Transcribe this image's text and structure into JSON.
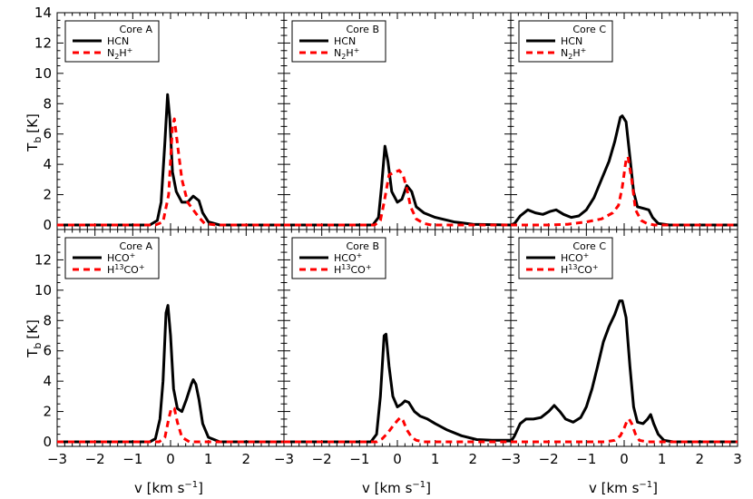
{
  "figure": {
    "ylabel_main": "T",
    "ylabel_sub": "b",
    "ylabel_unit": "[K]",
    "xlabel_main": "v [km s",
    "xlabel_sup": "−1",
    "xlabel_close": "]"
  },
  "colors": {
    "primary": "#000000",
    "secondary": "#ff0000"
  },
  "chart_data": [
    {
      "type": "line",
      "panel": "top-left",
      "legend": {
        "title": "Core A",
        "entries": [
          {
            "text": "HCN"
          },
          {
            "text": "N",
            "sub": "2",
            "text2": "H",
            "sup": "+"
          }
        ]
      },
      "xlim": [
        -3,
        3
      ],
      "ylim": [
        -0.3,
        14
      ],
      "yticks": [
        "0",
        "2",
        "4",
        "6",
        "8",
        "10",
        "12",
        "14"
      ],
      "xticks": [],
      "series": [
        {
          "style": "solid",
          "points": [
            [
              -3,
              0
            ],
            [
              -0.55,
              0
            ],
            [
              -0.35,
              0.3
            ],
            [
              -0.25,
              1.5
            ],
            [
              -0.15,
              5.5
            ],
            [
              -0.08,
              8.6
            ],
            [
              -0.02,
              7
            ],
            [
              0.05,
              3.5
            ],
            [
              0.15,
              2.2
            ],
            [
              0.3,
              1.5
            ],
            [
              0.45,
              1.5
            ],
            [
              0.6,
              1.9
            ],
            [
              0.75,
              1.6
            ],
            [
              0.85,
              0.8
            ],
            [
              1,
              0.2
            ],
            [
              1.3,
              0
            ],
            [
              3,
              0
            ]
          ]
        },
        {
          "style": "dashed",
          "points": [
            [
              -3,
              0
            ],
            [
              -0.4,
              0
            ],
            [
              -0.2,
              0.2
            ],
            [
              -0.05,
              2
            ],
            [
              0.05,
              6.5
            ],
            [
              0.1,
              7
            ],
            [
              0.2,
              5
            ],
            [
              0.3,
              3
            ],
            [
              0.45,
              1.5
            ],
            [
              0.6,
              1
            ],
            [
              0.75,
              0.5
            ],
            [
              0.9,
              0.1
            ],
            [
              1.2,
              0
            ],
            [
              3,
              0
            ]
          ]
        }
      ]
    },
    {
      "type": "line",
      "panel": "top-middle",
      "legend": {
        "title": "Core B",
        "entries": [
          {
            "text": "HCN"
          },
          {
            "text": "N",
            "sub": "2",
            "text2": "H",
            "sup": "+"
          }
        ]
      },
      "xlim": [
        -3,
        3
      ],
      "ylim": [
        -0.3,
        14
      ],
      "yticks": [],
      "xticks": [],
      "series": [
        {
          "style": "solid",
          "points": [
            [
              -3,
              0
            ],
            [
              -0.65,
              0
            ],
            [
              -0.5,
              0.5
            ],
            [
              -0.42,
              2.5
            ],
            [
              -0.33,
              5.2
            ],
            [
              -0.25,
              4.2
            ],
            [
              -0.15,
              2.2
            ],
            [
              0,
              1.5
            ],
            [
              0.12,
              1.7
            ],
            [
              0.25,
              2.6
            ],
            [
              0.38,
              2.2
            ],
            [
              0.5,
              1.2
            ],
            [
              0.7,
              0.8
            ],
            [
              1,
              0.5
            ],
            [
              1.5,
              0.2
            ],
            [
              2,
              0.05
            ],
            [
              3,
              0
            ]
          ]
        },
        {
          "style": "dashed",
          "points": [
            [
              -3,
              0
            ],
            [
              -0.6,
              0
            ],
            [
              -0.45,
              0.3
            ],
            [
              -0.35,
              1.5
            ],
            [
              -0.22,
              3.3
            ],
            [
              -0.05,
              3.5
            ],
            [
              0.05,
              3.6
            ],
            [
              0.15,
              3.3
            ],
            [
              0.25,
              2.4
            ],
            [
              0.35,
              1.2
            ],
            [
              0.5,
              0.4
            ],
            [
              0.7,
              0.1
            ],
            [
              0.9,
              0
            ],
            [
              3,
              0
            ]
          ]
        }
      ]
    },
    {
      "type": "line",
      "panel": "top-right",
      "legend": {
        "title": "Core C",
        "entries": [
          {
            "text": "HCN"
          },
          {
            "text": "N",
            "sub": "2",
            "text2": "H",
            "sup": "+"
          }
        ]
      },
      "xlim": [
        -3,
        3
      ],
      "ylim": [
        -0.3,
        14
      ],
      "yticks": [],
      "xticks": [],
      "series": [
        {
          "style": "solid",
          "points": [
            [
              -3,
              0
            ],
            [
              -2.9,
              0.1
            ],
            [
              -2.75,
              0.6
            ],
            [
              -2.55,
              1
            ],
            [
              -2.35,
              0.8
            ],
            [
              -2.15,
              0.7
            ],
            [
              -1.95,
              0.9
            ],
            [
              -1.8,
              1
            ],
            [
              -1.6,
              0.7
            ],
            [
              -1.4,
              0.5
            ],
            [
              -1.2,
              0.6
            ],
            [
              -1,
              1
            ],
            [
              -0.8,
              1.8
            ],
            [
              -0.6,
              3
            ],
            [
              -0.4,
              4.2
            ],
            [
              -0.25,
              5.5
            ],
            [
              -0.1,
              7.1
            ],
            [
              -0.05,
              7.2
            ],
            [
              0.05,
              6.8
            ],
            [
              0.15,
              4.5
            ],
            [
              0.25,
              2.2
            ],
            [
              0.35,
              1.2
            ],
            [
              0.5,
              1.1
            ],
            [
              0.65,
              1
            ],
            [
              0.75,
              0.5
            ],
            [
              0.9,
              0.1
            ],
            [
              1.2,
              0
            ],
            [
              3,
              0
            ]
          ]
        },
        {
          "style": "dashed",
          "points": [
            [
              -3,
              0
            ],
            [
              -2,
              0
            ],
            [
              -1.5,
              0.05
            ],
            [
              -1,
              0.2
            ],
            [
              -0.6,
              0.4
            ],
            [
              -0.3,
              0.8
            ],
            [
              -0.15,
              1.3
            ],
            [
              -0.05,
              2.5
            ],
            [
              0.05,
              4.3
            ],
            [
              0.1,
              4.5
            ],
            [
              0.2,
              3
            ],
            [
              0.3,
              1
            ],
            [
              0.45,
              0.3
            ],
            [
              0.6,
              0.1
            ],
            [
              0.8,
              0
            ],
            [
              3,
              0
            ]
          ]
        }
      ]
    },
    {
      "type": "line",
      "panel": "bottom-left",
      "legend": {
        "title": "Core A",
        "entries": [
          {
            "text": "HCO",
            "sup": "+"
          },
          {
            "text": "H",
            "sup": "13",
            "text2": "CO",
            "sup2": "+"
          }
        ]
      },
      "xlim": [
        -3,
        3
      ],
      "ylim": [
        -0.3,
        14
      ],
      "yticks": [
        "0",
        "2",
        "4",
        "6",
        "8",
        "10",
        "12"
      ],
      "xticks": [
        "−3",
        "−2",
        "−1",
        "0",
        "1",
        "2"
      ],
      "series": [
        {
          "style": "solid",
          "points": [
            [
              -3,
              0
            ],
            [
              -0.55,
              0
            ],
            [
              -0.4,
              0.2
            ],
            [
              -0.28,
              1.5
            ],
            [
              -0.2,
              4
            ],
            [
              -0.12,
              8.5
            ],
            [
              -0.07,
              9
            ],
            [
              0,
              7
            ],
            [
              0.08,
              3.5
            ],
            [
              0.18,
              2.2
            ],
            [
              0.3,
              2
            ],
            [
              0.42,
              2.8
            ],
            [
              0.55,
              3.8
            ],
            [
              0.6,
              4.1
            ],
            [
              0.67,
              3.8
            ],
            [
              0.75,
              2.8
            ],
            [
              0.85,
              1.2
            ],
            [
              1,
              0.3
            ],
            [
              1.3,
              0
            ],
            [
              3,
              0
            ]
          ]
        },
        {
          "style": "dashed",
          "points": [
            [
              -3,
              0
            ],
            [
              -0.3,
              0
            ],
            [
              -0.15,
              0.3
            ],
            [
              -0.05,
              1.5
            ],
            [
              0.02,
              2.2
            ],
            [
              0.1,
              2.2
            ],
            [
              0.18,
              1.3
            ],
            [
              0.3,
              0.3
            ],
            [
              0.5,
              0
            ],
            [
              3,
              0
            ]
          ]
        }
      ]
    },
    {
      "type": "line",
      "panel": "bottom-middle",
      "legend": {
        "title": "Core B",
        "entries": [
          {
            "text": "HCO",
            "sup": "+"
          },
          {
            "text": "H",
            "sup": "13",
            "text2": "CO",
            "sup2": "+"
          }
        ]
      },
      "xlim": [
        -3,
        3
      ],
      "ylim": [
        -0.3,
        14
      ],
      "yticks": [],
      "xticks": [
        "−3",
        "−2",
        "−1",
        "0",
        "1",
        "2"
      ],
      "series": [
        {
          "style": "solid",
          "points": [
            [
              -3,
              0
            ],
            [
              -0.7,
              0
            ],
            [
              -0.55,
              0.5
            ],
            [
              -0.45,
              3
            ],
            [
              -0.35,
              7
            ],
            [
              -0.3,
              7.1
            ],
            [
              -0.22,
              5
            ],
            [
              -0.12,
              3
            ],
            [
              0,
              2.3
            ],
            [
              0.12,
              2.5
            ],
            [
              0.2,
              2.7
            ],
            [
              0.3,
              2.6
            ],
            [
              0.45,
              2
            ],
            [
              0.6,
              1.7
            ],
            [
              0.8,
              1.5
            ],
            [
              1,
              1.2
            ],
            [
              1.3,
              0.8
            ],
            [
              1.7,
              0.4
            ],
            [
              2.1,
              0.15
            ],
            [
              2.5,
              0.1
            ],
            [
              3,
              0.1
            ]
          ]
        },
        {
          "style": "dashed",
          "points": [
            [
              -3,
              0
            ],
            [
              -0.55,
              0
            ],
            [
              -0.4,
              0.2
            ],
            [
              -0.25,
              0.6
            ],
            [
              -0.1,
              1.1
            ],
            [
              0,
              1.4
            ],
            [
              0.08,
              1.6
            ],
            [
              0.15,
              1.4
            ],
            [
              0.25,
              0.8
            ],
            [
              0.38,
              0.3
            ],
            [
              0.5,
              0.1
            ],
            [
              0.7,
              0
            ],
            [
              3,
              0
            ]
          ]
        }
      ]
    },
    {
      "type": "line",
      "panel": "bottom-right",
      "legend": {
        "title": "Core C",
        "entries": [
          {
            "text": "HCO",
            "sup": "+"
          },
          {
            "text": "H",
            "sup": "13",
            "text2": "CO",
            "sup2": "+"
          }
        ]
      },
      "xlim": [
        -3,
        3
      ],
      "ylim": [
        -0.3,
        14
      ],
      "yticks": [],
      "xticks": [
        "−3",
        "−2",
        "−1",
        "0",
        "1",
        "2",
        "3"
      ],
      "series": [
        {
          "style": "solid",
          "points": [
            [
              -3,
              0
            ],
            [
              -2.9,
              0.4
            ],
            [
              -2.75,
              1.2
            ],
            [
              -2.6,
              1.5
            ],
            [
              -2.4,
              1.5
            ],
            [
              -2.2,
              1.6
            ],
            [
              -2,
              2
            ],
            [
              -1.85,
              2.4
            ],
            [
              -1.7,
              2
            ],
            [
              -1.55,
              1.5
            ],
            [
              -1.35,
              1.3
            ],
            [
              -1.15,
              1.6
            ],
            [
              -1,
              2.3
            ],
            [
              -0.85,
              3.5
            ],
            [
              -0.7,
              5
            ],
            [
              -0.55,
              6.6
            ],
            [
              -0.4,
              7.6
            ],
            [
              -0.25,
              8.4
            ],
            [
              -0.12,
              9.3
            ],
            [
              -0.05,
              9.3
            ],
            [
              0.05,
              8.2
            ],
            [
              0.15,
              5
            ],
            [
              0.25,
              2.3
            ],
            [
              0.35,
              1.3
            ],
            [
              0.5,
              1.2
            ],
            [
              0.62,
              1.5
            ],
            [
              0.7,
              1.8
            ],
            [
              0.78,
              1.2
            ],
            [
              0.9,
              0.5
            ],
            [
              1.05,
              0.1
            ],
            [
              1.3,
              0
            ],
            [
              3,
              0
            ]
          ]
        },
        {
          "style": "dashed",
          "points": [
            [
              -3,
              0
            ],
            [
              -0.5,
              0
            ],
            [
              -0.25,
              0.1
            ],
            [
              -0.1,
              0.4
            ],
            [
              0,
              0.9
            ],
            [
              0.08,
              1.4
            ],
            [
              0.13,
              1.5
            ],
            [
              0.2,
              1.2
            ],
            [
              0.3,
              0.5
            ],
            [
              0.4,
              0.1
            ],
            [
              0.6,
              0
            ],
            [
              3,
              0
            ]
          ]
        }
      ]
    }
  ]
}
